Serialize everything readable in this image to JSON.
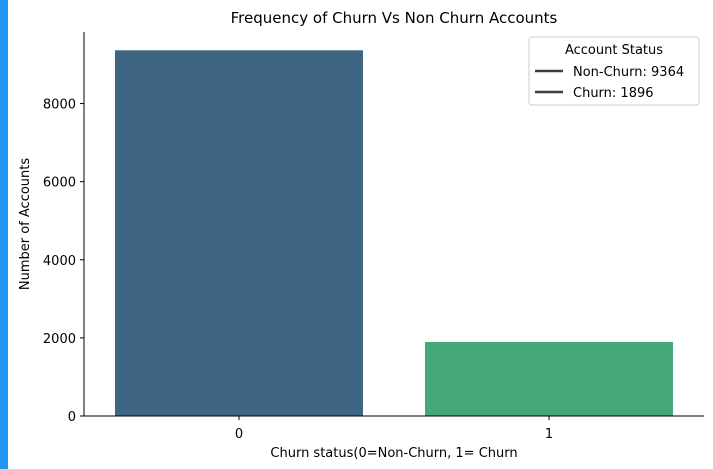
{
  "page": {
    "accent_color": "#2196F3"
  },
  "chart_data": {
    "type": "bar",
    "title": "Frequency of Churn Vs Non Churn Accounts",
    "xlabel": "Churn status(0=Non-Churn, 1= Churn",
    "ylabel": "Number of Accounts",
    "categories": [
      "0",
      "1"
    ],
    "values": [
      9364,
      1896
    ],
    "colors": [
      "#3E6683",
      "#45A878"
    ],
    "ylim": [
      0,
      9832
    ],
    "yticks": [
      0,
      2000,
      4000,
      6000,
      8000
    ],
    "ytick_labels": [
      "0",
      "2000",
      "4000",
      "6000",
      "8000"
    ],
    "grid": false,
    "legend": {
      "title": "Account Status",
      "placement": "top-right",
      "entries": [
        "Non-Churn: 9364",
        "Churn: 1896"
      ],
      "line_color": "#3f3f3f"
    }
  }
}
